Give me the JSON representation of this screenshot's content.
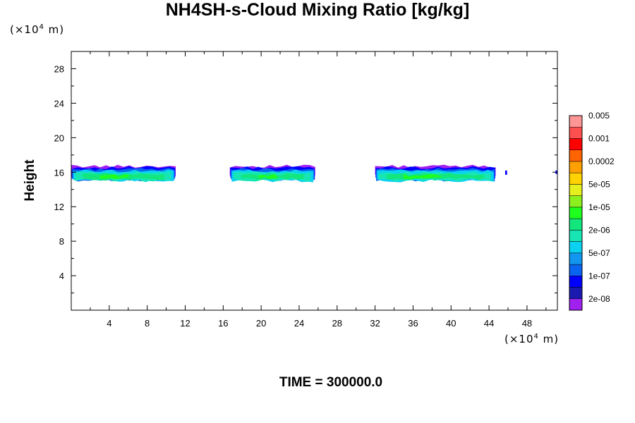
{
  "chart_data": {
    "type": "heatmap",
    "title": "NH4SH-s-Cloud Mixing Ratio [kg/kg]",
    "ylabel": "Height",
    "y_unit_prefix": "(×10",
    "y_unit_exp": "4",
    "y_unit_suffix": " m)",
    "x_unit_prefix": "(×10",
    "x_unit_exp": "4",
    "x_unit_suffix": " m)",
    "footer": "TIME = 300000.0",
    "xlim": [
      0,
      51.2
    ],
    "ylim": [
      0,
      30
    ],
    "x_ticks": [
      "4",
      "8",
      "12",
      "16",
      "20",
      "24",
      "28",
      "32",
      "36",
      "40",
      "44",
      "48"
    ],
    "y_ticks": [
      "4",
      "8",
      "12",
      "16",
      "20",
      "24",
      "28"
    ],
    "legend_labels": [
      "0.005",
      "0.001",
      "0.0002",
      "5e-05",
      "1e-05",
      "2e-06",
      "5e-07",
      "1e-07",
      "2e-08"
    ],
    "legend_colors": [
      "#a020f0",
      "#1a1ab0",
      "#0000ff",
      "#0a64f0",
      "#1296f0",
      "#0ad2f0",
      "#17e6b4",
      "#12e67d",
      "#1eff1e",
      "#8cf01e",
      "#e6f01e",
      "#ffd200",
      "#ffa000",
      "#ff6400",
      "#ff0000",
      "#ff5050",
      "#ff9696"
    ],
    "clouds": [
      {
        "x_start": 0.0,
        "x_end": 11.0,
        "y_base": 15.0,
        "y_top": 16.7,
        "core_level": "1e-05"
      },
      {
        "x_start": 16.7,
        "x_end": 25.7,
        "y_base": 15.0,
        "y_top": 16.7,
        "core_level": "1e-05"
      },
      {
        "x_start": 32.0,
        "x_end": 44.7,
        "y_base": 15.0,
        "y_top": 16.7,
        "core_level": "1e-05"
      },
      {
        "x_start": 45.7,
        "x_end": 45.9,
        "y_base": 15.7,
        "y_top": 16.2,
        "core_level": "1e-07"
      },
      {
        "x_start": 51.0,
        "x_end": 51.2,
        "y_base": 15.8,
        "y_top": 16.2,
        "core_level": "1e-07"
      }
    ]
  }
}
